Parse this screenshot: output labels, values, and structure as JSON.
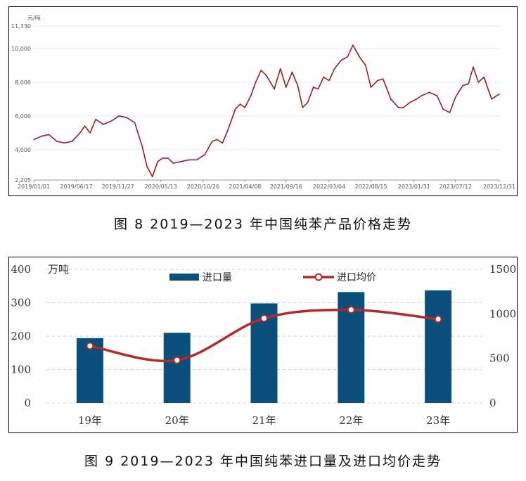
{
  "captions": {
    "fig8": "图 8 2019—2023 年中国纯苯产品价格走势",
    "fig9": "图 9 2019—2023 年中国纯苯进口量及进口均价走势"
  },
  "chart_data": [
    {
      "type": "line",
      "ylabel": "元/吨",
      "ylim": [
        2205,
        11330
      ],
      "y_ticks": [
        "11,330",
        "10,000",
        "8,000",
        "6,000",
        "4,000",
        "2,205"
      ],
      "x_ticks": [
        "2019/01/01",
        "2019/06/17",
        "2019/11/27",
        "2020/05/13",
        "2020/10/26",
        "2021/04/08",
        "2021/09/16",
        "2022/03/04",
        "2022/08/15",
        "2023/01/31",
        "2023/07/12",
        "2023/12/31"
      ],
      "grid": true,
      "line_color": "#9e1b20",
      "series": [
        {
          "x": [
            "2019/01/01",
            "2019/02/01",
            "2019/03/01",
            "2019/04/01",
            "2019/05/01",
            "2019/06/01",
            "2019/07/01",
            "2019/07/20",
            "2019/08/10",
            "2019/09/01",
            "2019/10/01",
            "2019/11/01",
            "2019/12/01",
            "2020/01/01",
            "2020/02/01",
            "2020/03/01",
            "2020/03/20",
            "2020/04/10",
            "2020/05/01",
            "2020/05/20",
            "2020/06/10",
            "2020/07/01",
            "2020/08/01",
            "2020/09/01",
            "2020/10/01",
            "2020/11/01",
            "2020/12/01",
            "2020/12/20",
            "2021/01/10",
            "2021/02/01",
            "2021/03/01",
            "2021/03/20",
            "2021/04/08",
            "2021/05/01",
            "2021/05/20",
            "2021/06/10",
            "2021/07/01",
            "2021/08/01",
            "2021/08/25",
            "2021/09/16",
            "2021/10/10",
            "2021/11/01",
            "2021/11/20",
            "2021/12/10",
            "2022/01/01",
            "2022/01/20",
            "2022/02/10",
            "2022/03/04",
            "2022/03/25",
            "2022/04/20",
            "2022/05/15",
            "2022/06/05",
            "2022/07/01",
            "2022/07/25",
            "2022/08/15",
            "2022/09/10",
            "2022/10/01",
            "2022/11/01",
            "2022/12/01",
            "2022/12/20",
            "2023/01/15",
            "2023/02/10",
            "2023/03/01",
            "2023/04/01",
            "2023/05/01",
            "2023/05/25",
            "2023/06/20",
            "2023/07/12",
            "2023/08/10",
            "2023/09/01",
            "2023/09/20",
            "2023/10/10",
            "2023/11/01",
            "2023/12/01",
            "2023/12/31"
          ],
          "y": [
            4600,
            4800,
            4900,
            4500,
            4400,
            4500,
            5000,
            5400,
            5000,
            5800,
            5500,
            5700,
            6000,
            5900,
            5600,
            4200,
            3000,
            2400,
            3300,
            3500,
            3500,
            3200,
            3300,
            3400,
            3400,
            3700,
            4500,
            4600,
            4400,
            5200,
            6400,
            6700,
            6500,
            7200,
            8000,
            8700,
            8400,
            7600,
            8800,
            7700,
            8600,
            7800,
            6500,
            6800,
            7700,
            7600,
            8300,
            8100,
            8800,
            9300,
            9500,
            10200,
            9500,
            9000,
            7700,
            8100,
            8200,
            7000,
            6500,
            6500,
            6800,
            7000,
            7200,
            7400,
            7200,
            6400,
            6200,
            7100,
            7800,
            7900,
            8900,
            8000,
            8300,
            7000,
            7300
          ]
        }
      ]
    },
    {
      "type": "bar",
      "categories": [
        "19年",
        "20年",
        "21年",
        "22年",
        "23年"
      ],
      "ylabel": "万吨",
      "ylim": [
        0,
        400
      ],
      "y_ticks": [
        "0",
        "100",
        "200",
        "300",
        "400"
      ],
      "y2lim": [
        0,
        1500
      ],
      "y2_ticks": [
        "0",
        "500",
        "1000",
        "1500"
      ],
      "grid": true,
      "legend_position": "top",
      "series": [
        {
          "name": "进口量",
          "type": "bar",
          "axis": "left",
          "color": "#0b4f7c",
          "values": [
            194,
            210,
            298,
            332,
            337
          ]
        },
        {
          "name": "进口均价",
          "type": "line",
          "axis": "right",
          "color": "#b22a2a",
          "values": [
            640,
            480,
            950,
            1045,
            940
          ]
        }
      ]
    }
  ]
}
